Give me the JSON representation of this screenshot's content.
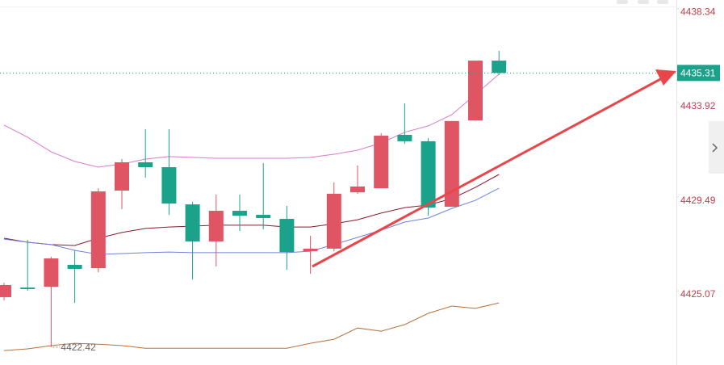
{
  "chart_data": {
    "type": "candlestick",
    "ylim": [
      4421.58,
      4438.74
    ],
    "yticks": [
      4438.34,
      4433.92,
      4429.49,
      4425.07
    ],
    "up_color": "#e05563",
    "down_color": "#1aa38a",
    "open": [
      4424.77,
      4425.22,
      4425.26,
      4426.29,
      4426.13,
      4429.78,
      4431.11,
      4430.88,
      4429.13,
      4427.39,
      4428.83,
      4428.64,
      4428.45,
      4426.93,
      4427.05,
      4429.7,
      4429.89,
      4432.4,
      4432.1,
      4429.02,
      4433.08,
      4435.89
    ],
    "high": [
      4425.45,
      4427.46,
      4426.67,
      4426.97,
      4429.89,
      4431.26,
      4432.67,
      4432.67,
      4429.25,
      4429.59,
      4429.59,
      4431.07,
      4429.06,
      4427.65,
      4430.16,
      4430.96,
      4432.48,
      4433.88,
      4432.25,
      4433.05,
      4435.89,
      4436.35
    ],
    "low": [
      4424.62,
      4425.07,
      4422.42,
      4424.5,
      4425.94,
      4428.91,
      4430.39,
      4428.64,
      4425.6,
      4426.21,
      4427.88,
      4427.96,
      4426.06,
      4425.87,
      4426.93,
      4429.63,
      4429.89,
      4431.98,
      4428.6,
      4429.02,
      4433.08,
      4435.21
    ],
    "close": [
      4425.34,
      4425.15,
      4426.59,
      4426.1,
      4429.74,
      4431.11,
      4430.88,
      4429.17,
      4427.39,
      4428.83,
      4428.6,
      4428.49,
      4426.89,
      4427.05,
      4429.63,
      4429.97,
      4432.36,
      4432.1,
      4428.98,
      4433.05,
      4435.89,
      4435.31
    ],
    "lines": [
      {
        "color": "#d97ad0",
        "values": [
          4432.86,
          4432.29,
          4431.6,
          4431.15,
          4430.88,
          4431.03,
          4431.26,
          4431.38,
          4431.34,
          4431.3,
          4431.3,
          4431.3,
          4431.3,
          4431.34,
          4431.49,
          4431.68,
          4432.02,
          4432.52,
          4432.82,
          4433.35,
          4434.3,
          4435.25
        ]
      },
      {
        "color": "#8b1a2b",
        "values": [
          4427.54,
          4427.35,
          4427.24,
          4427.2,
          4427.54,
          4427.81,
          4428.0,
          4428.07,
          4428.11,
          4428.15,
          4428.15,
          4428.15,
          4428.07,
          4428.07,
          4428.22,
          4428.41,
          4428.72,
          4428.98,
          4429.1,
          4429.4,
          4429.93,
          4430.54
        ]
      },
      {
        "color": "#6f82e0",
        "values": [
          4427.5,
          4427.35,
          4427.24,
          4426.97,
          4426.78,
          4426.82,
          4426.86,
          4426.89,
          4426.86,
          4426.86,
          4426.86,
          4426.86,
          4426.86,
          4426.93,
          4427.24,
          4427.58,
          4427.92,
          4428.3,
          4428.49,
          4428.94,
          4429.32,
          4429.89
        ]
      },
      {
        "color": "#b8703a",
        "values": [
          4422.26,
          4422.34,
          4422.49,
          4422.6,
          4422.56,
          4422.49,
          4422.37,
          4422.37,
          4422.37,
          4422.37,
          4422.37,
          4422.37,
          4422.37,
          4422.6,
          4422.79,
          4423.32,
          4423.17,
          4423.48,
          4424.01,
          4424.35,
          4424.24,
          4424.5
        ]
      }
    ],
    "last_price": 4435.31,
    "low_marker": 4422.42
  }
}
